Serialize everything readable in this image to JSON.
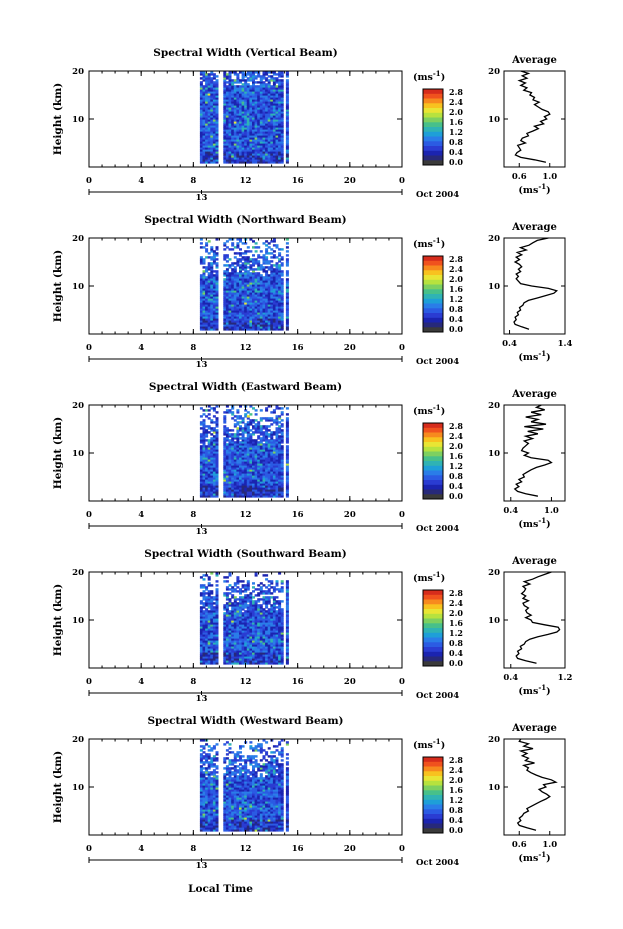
{
  "figure": {
    "date_label": "Oct 2004",
    "x_axis_label": "Local Time",
    "unit_label": "(ms",
    "unit_exp": "-1",
    "unit_close": ")",
    "avg_title": "Average",
    "height_label": "Height (km)"
  },
  "colorbar": {
    "ticks": [
      "2.8",
      "2.4",
      "2.0",
      "1.6",
      "1.2",
      "0.8",
      "0.4",
      "0.0"
    ],
    "colors": [
      "#d62c1c",
      "#f0521e",
      "#f78a1e",
      "#f8c21f",
      "#e9e534",
      "#b7e23e",
      "#7dd060",
      "#47c08a",
      "#2fb3b4",
      "#1e9fd8",
      "#2a7de8",
      "#2b5be3",
      "#2a3cd2",
      "#1b24b0",
      "#27297a",
      "#3a3a3a"
    ]
  },
  "chart_data": [
    {
      "type": "heatmap",
      "title": "Spectral Width (Vertical Beam)",
      "xlabel": "",
      "ylabel": "Height (km)",
      "xlim": [
        0,
        24
      ],
      "ylim": [
        0,
        20
      ],
      "xticks": [
        "0",
        "4",
        "8",
        "12",
        "16",
        "20",
        "0"
      ],
      "xticks2": [
        "13"
      ],
      "yticks": [
        "20",
        "10"
      ],
      "cbar_ticks": [
        "2.8",
        "2.4",
        "2.0",
        "1.6",
        "1.2",
        "0.8",
        "0.4",
        "0.0"
      ],
      "data_time_range": [
        8.5,
        15.3
      ],
      "avg": {
        "xlim": [
          0.4,
          1.2
        ],
        "xticks": [
          "0.6",
          "1.0"
        ],
        "yticks": [
          "20",
          "10"
        ],
        "profile": [
          [
            0.95,
            1
          ],
          [
            0.8,
            1.5
          ],
          [
            0.62,
            2
          ],
          [
            0.55,
            2.5
          ],
          [
            0.57,
            3
          ],
          [
            0.62,
            3.5
          ],
          [
            0.6,
            4
          ],
          [
            0.58,
            4.5
          ],
          [
            0.68,
            5
          ],
          [
            0.62,
            5.5
          ],
          [
            0.64,
            6
          ],
          [
            0.72,
            6.5
          ],
          [
            0.7,
            7
          ],
          [
            0.78,
            7.5
          ],
          [
            0.85,
            8
          ],
          [
            0.8,
            8.5
          ],
          [
            0.92,
            9
          ],
          [
            0.88,
            9.5
          ],
          [
            0.96,
            10
          ],
          [
            0.93,
            10.5
          ],
          [
            1.0,
            11
          ],
          [
            0.98,
            11.5
          ],
          [
            0.9,
            12
          ],
          [
            0.85,
            12.5
          ],
          [
            0.8,
            13
          ],
          [
            0.86,
            13.5
          ],
          [
            0.78,
            14
          ],
          [
            0.8,
            14.5
          ],
          [
            0.74,
            15
          ],
          [
            0.76,
            15.5
          ],
          [
            0.66,
            16
          ],
          [
            0.7,
            16.5
          ],
          [
            0.62,
            17
          ],
          [
            0.68,
            17.5
          ],
          [
            0.6,
            18
          ],
          [
            0.7,
            18.5
          ],
          [
            0.64,
            19
          ],
          [
            0.72,
            19.5
          ],
          [
            0.62,
            20
          ]
        ]
      }
    },
    {
      "type": "heatmap",
      "title": "Spectral Width (Northward Beam)",
      "xlabel": "",
      "ylabel": "Height (km)",
      "xlim": [
        0,
        24
      ],
      "ylim": [
        0,
        20
      ],
      "xticks": [
        "0",
        "4",
        "8",
        "12",
        "16",
        "20",
        "0"
      ],
      "xticks2": [
        "13"
      ],
      "yticks": [
        "20",
        "10"
      ],
      "cbar_ticks": [
        "2.8",
        "2.4",
        "2.0",
        "1.6",
        "1.2",
        "0.8",
        "0.4",
        "0.0"
      ],
      "data_time_range": [
        8.5,
        15.3
      ],
      "avg": {
        "xlim": [
          0.3,
          1.4
        ],
        "xticks": [
          "0.4",
          "1.4"
        ],
        "yticks": [
          "20",
          "10"
        ],
        "profile": [
          [
            0.75,
            1
          ],
          [
            0.62,
            1.5
          ],
          [
            0.5,
            2
          ],
          [
            0.48,
            2.5
          ],
          [
            0.52,
            3
          ],
          [
            0.5,
            3.5
          ],
          [
            0.56,
            4
          ],
          [
            0.54,
            4.5
          ],
          [
            0.6,
            5
          ],
          [
            0.58,
            5.5
          ],
          [
            0.64,
            6
          ],
          [
            0.66,
            6.5
          ],
          [
            0.74,
            7
          ],
          [
            0.9,
            7.5
          ],
          [
            1.05,
            8
          ],
          [
            1.2,
            8.5
          ],
          [
            1.25,
            9
          ],
          [
            1.1,
            9.5
          ],
          [
            0.8,
            10
          ],
          [
            0.6,
            10.5
          ],
          [
            0.56,
            11
          ],
          [
            0.52,
            11.5
          ],
          [
            0.56,
            12
          ],
          [
            0.52,
            12.5
          ],
          [
            0.6,
            13
          ],
          [
            0.56,
            13.5
          ],
          [
            0.62,
            14
          ],
          [
            0.58,
            14.5
          ],
          [
            0.5,
            15
          ],
          [
            0.58,
            15.5
          ],
          [
            0.52,
            16
          ],
          [
            0.62,
            16.5
          ],
          [
            0.54,
            17
          ],
          [
            0.7,
            17.5
          ],
          [
            0.6,
            18
          ],
          [
            0.75,
            18.5
          ],
          [
            0.82,
            19
          ],
          [
            0.9,
            19.5
          ],
          [
            1.1,
            20
          ]
        ]
      }
    },
    {
      "type": "heatmap",
      "title": "Spectral Width (Eastward Beam)",
      "xlabel": "",
      "ylabel": "Height (km)",
      "xlim": [
        0,
        24
      ],
      "ylim": [
        0,
        20
      ],
      "xticks": [
        "0",
        "4",
        "8",
        "12",
        "16",
        "20",
        "0"
      ],
      "xticks2": [
        "13"
      ],
      "yticks": [
        "20",
        "10"
      ],
      "cbar_ticks": [
        "2.8",
        "2.4",
        "2.0",
        "1.6",
        "1.2",
        "0.8",
        "0.4",
        "0.0"
      ],
      "data_time_range": [
        8.5,
        15.3
      ],
      "avg": {
        "xlim": [
          0.3,
          1.2
        ],
        "xticks": [
          "0.4",
          "1.0"
        ],
        "yticks": [
          "20",
          "10"
        ],
        "profile": [
          [
            0.8,
            1
          ],
          [
            0.62,
            1.5
          ],
          [
            0.5,
            2
          ],
          [
            0.46,
            2.5
          ],
          [
            0.52,
            3
          ],
          [
            0.48,
            3.5
          ],
          [
            0.56,
            4
          ],
          [
            0.52,
            4.5
          ],
          [
            0.6,
            5
          ],
          [
            0.58,
            5.5
          ],
          [
            0.64,
            6
          ],
          [
            0.7,
            6.5
          ],
          [
            0.78,
            7
          ],
          [
            0.9,
            7.5
          ],
          [
            1.0,
            8
          ],
          [
            0.95,
            8.5
          ],
          [
            0.7,
            9
          ],
          [
            0.6,
            9.5
          ],
          [
            0.66,
            10
          ],
          [
            0.56,
            10.5
          ],
          [
            0.58,
            11
          ],
          [
            0.62,
            11.5
          ],
          [
            0.66,
            12
          ],
          [
            0.6,
            12.5
          ],
          [
            0.72,
            13
          ],
          [
            0.62,
            13.5
          ],
          [
            0.8,
            14
          ],
          [
            0.65,
            14.5
          ],
          [
            0.88,
            15
          ],
          [
            0.6,
            15.5
          ],
          [
            0.92,
            16
          ],
          [
            0.7,
            16.5
          ],
          [
            0.8,
            17
          ],
          [
            0.62,
            17.5
          ],
          [
            0.85,
            18
          ],
          [
            0.7,
            18.5
          ],
          [
            0.9,
            19
          ],
          [
            0.78,
            19.5
          ],
          [
            0.85,
            20
          ]
        ]
      }
    },
    {
      "type": "heatmap",
      "title": "Spectral Width (Southward Beam)",
      "xlabel": "",
      "ylabel": "Height (km)",
      "xlim": [
        0,
        24
      ],
      "ylim": [
        0,
        20
      ],
      "xticks": [
        "0",
        "4",
        "8",
        "12",
        "16",
        "20",
        "0"
      ],
      "xticks2": [
        "13"
      ],
      "yticks": [
        "20",
        "10"
      ],
      "cbar_ticks": [
        "2.8",
        "2.4",
        "2.0",
        "1.6",
        "1.2",
        "0.8",
        "0.4",
        "0.0"
      ],
      "data_time_range": [
        8.5,
        15.3
      ],
      "avg": {
        "xlim": [
          0.3,
          1.2
        ],
        "xticks": [
          "0.4",
          "1.2"
        ],
        "yticks": [
          "20",
          "10"
        ],
        "profile": [
          [
            0.78,
            1
          ],
          [
            0.62,
            1.5
          ],
          [
            0.5,
            2
          ],
          [
            0.48,
            2.5
          ],
          [
            0.52,
            3
          ],
          [
            0.5,
            3.5
          ],
          [
            0.56,
            4
          ],
          [
            0.54,
            4.5
          ],
          [
            0.6,
            5
          ],
          [
            0.62,
            5.5
          ],
          [
            0.68,
            6
          ],
          [
            0.8,
            6.5
          ],
          [
            0.95,
            7
          ],
          [
            1.08,
            7.5
          ],
          [
            1.12,
            8
          ],
          [
            1.1,
            8.5
          ],
          [
            0.9,
            9
          ],
          [
            0.72,
            9.5
          ],
          [
            0.7,
            10
          ],
          [
            0.62,
            10.5
          ],
          [
            0.7,
            11
          ],
          [
            0.64,
            11.5
          ],
          [
            0.62,
            12
          ],
          [
            0.66,
            12.5
          ],
          [
            0.6,
            13
          ],
          [
            0.58,
            13.5
          ],
          [
            0.66,
            14
          ],
          [
            0.58,
            14.5
          ],
          [
            0.62,
            15
          ],
          [
            0.56,
            15.5
          ],
          [
            0.6,
            16
          ],
          [
            0.62,
            16.5
          ],
          [
            0.58,
            17
          ],
          [
            0.68,
            17.5
          ],
          [
            0.6,
            18
          ],
          [
            0.72,
            18.5
          ],
          [
            0.8,
            19
          ],
          [
            0.9,
            19.5
          ],
          [
            1.0,
            20
          ]
        ]
      }
    },
    {
      "type": "heatmap",
      "title": "Spectral Width (Westward Beam)",
      "xlabel": "Local Time",
      "ylabel": "Height (km)",
      "xlim": [
        0,
        24
      ],
      "ylim": [
        0,
        20
      ],
      "xticks": [
        "0",
        "4",
        "8",
        "12",
        "16",
        "20",
        "0"
      ],
      "xticks2": [
        "13"
      ],
      "yticks": [
        "20",
        "10"
      ],
      "cbar_ticks": [
        "2.8",
        "2.4",
        "2.0",
        "1.6",
        "1.2",
        "0.8",
        "0.4",
        "0.0"
      ],
      "data_time_range": [
        8.5,
        15.3
      ],
      "avg": {
        "xlim": [
          0.4,
          1.2
        ],
        "xticks": [
          "0.6",
          "1.0"
        ],
        "yticks": [
          "20",
          "10"
        ],
        "profile": [
          [
            0.82,
            1
          ],
          [
            0.7,
            1.5
          ],
          [
            0.6,
            2
          ],
          [
            0.58,
            2.5
          ],
          [
            0.62,
            3
          ],
          [
            0.6,
            3.5
          ],
          [
            0.64,
            4
          ],
          [
            0.66,
            4.5
          ],
          [
            0.72,
            5
          ],
          [
            0.7,
            5.5
          ],
          [
            0.76,
            6
          ],
          [
            0.82,
            6.5
          ],
          [
            0.88,
            7
          ],
          [
            0.95,
            7.5
          ],
          [
            1.0,
            8
          ],
          [
            0.96,
            8.5
          ],
          [
            0.9,
            9
          ],
          [
            0.86,
            9.5
          ],
          [
            0.95,
            10
          ],
          [
            0.92,
            10.5
          ],
          [
            1.08,
            11
          ],
          [
            1.02,
            11.5
          ],
          [
            0.9,
            12
          ],
          [
            0.82,
            12.5
          ],
          [
            0.75,
            13
          ],
          [
            0.7,
            13.5
          ],
          [
            0.72,
            14
          ],
          [
            0.66,
            14.5
          ],
          [
            0.8,
            15
          ],
          [
            0.68,
            15.5
          ],
          [
            0.72,
            16
          ],
          [
            0.64,
            16.5
          ],
          [
            0.7,
            17
          ],
          [
            0.62,
            17.5
          ],
          [
            0.78,
            18
          ],
          [
            0.66,
            18.5
          ],
          [
            0.72,
            19
          ],
          [
            0.6,
            19.5
          ],
          [
            0.62,
            20
          ]
        ]
      }
    }
  ]
}
